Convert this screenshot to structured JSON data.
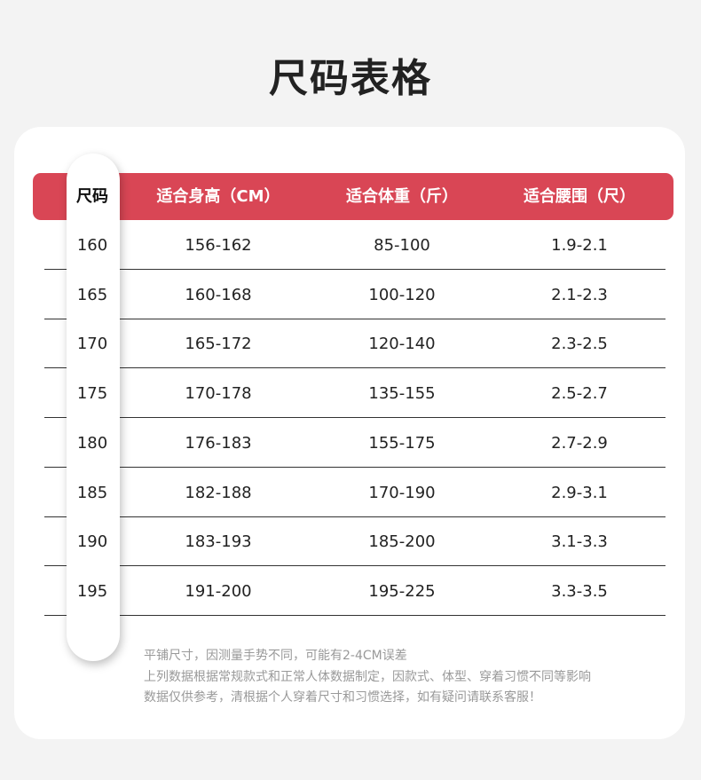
{
  "title": "尺码表格",
  "colors": {
    "header": "#d94655"
  },
  "headers": [
    "尺码",
    "适合身高（CM）",
    "适合体重（斤）",
    "适合腰围（尺）"
  ],
  "rows": [
    [
      "160",
      "156-162",
      "85-100",
      "1.9-2.1"
    ],
    [
      "165",
      "160-168",
      "100-120",
      "2.1-2.3"
    ],
    [
      "170",
      "165-172",
      "120-140",
      "2.3-2.5"
    ],
    [
      "175",
      "170-178",
      "135-155",
      "2.5-2.7"
    ],
    [
      "180",
      "176-183",
      "155-175",
      "2.7-2.9"
    ],
    [
      "185",
      "182-188",
      "170-190",
      "2.9-3.1"
    ],
    [
      "190",
      "183-193",
      "185-200",
      "3.1-3.3"
    ],
    [
      "195",
      "191-200",
      "195-225",
      "3.3-3.5"
    ]
  ],
  "notes": [
    "平铺尺寸，因测量手势不同，可能有2-4CM误差",
    "上列数据根据常规款式和正常人体数据制定，因款式、体型、穿着习惯不同等影响",
    "数据仅供参考，清根据个人穿着尺寸和习惯选择，如有疑问请联系客服！"
  ]
}
